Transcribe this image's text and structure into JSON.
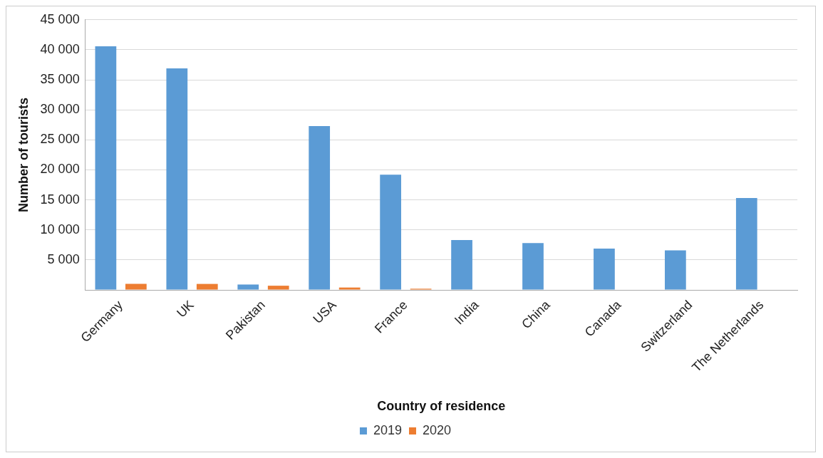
{
  "chart_data": {
    "type": "bar",
    "xlabel": "Country of residence",
    "ylabel": "Number of tourists",
    "categories": [
      "Germany",
      "UK",
      "Pakistan",
      "USA",
      "France",
      "India",
      "China",
      "Canada",
      "Switzerland",
      "The Netherlands"
    ],
    "series": [
      {
        "name": "2019",
        "color": "#5b9bd5",
        "values": [
          40600,
          36900,
          900,
          27300,
          19200,
          8300,
          7800,
          6900,
          6600,
          15300
        ]
      },
      {
        "name": "2020",
        "color": "#ed7d31",
        "values": [
          1000,
          1000,
          700,
          400,
          200,
          0,
          0,
          0,
          0,
          0
        ]
      }
    ],
    "ylim": [
      0,
      45000
    ],
    "yticks": [
      {
        "value": 0,
        "label": null
      },
      {
        "value": 5000,
        "label": "5 000"
      },
      {
        "value": 10000,
        "label": "10 000"
      },
      {
        "value": 15000,
        "label": "15 000"
      },
      {
        "value": 20000,
        "label": "20 000"
      },
      {
        "value": 25000,
        "label": "25 000"
      },
      {
        "value": 30000,
        "label": "30 000"
      },
      {
        "value": 35000,
        "label": "35 000"
      },
      {
        "value": 40000,
        "label": "40 000"
      },
      {
        "value": 45000,
        "label": "45 000"
      }
    ],
    "grid": "y",
    "legend": "bottom"
  }
}
